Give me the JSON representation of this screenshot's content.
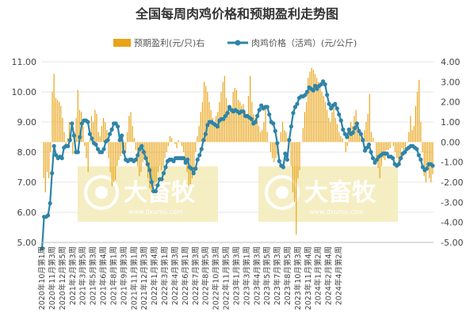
{
  "chart_data": {
    "type": "bar+line",
    "title": "全国每周肉鸡价格和预期盈利走势图",
    "legend": {
      "placement": "top-center"
    },
    "colors": {
      "bar": "#E8A317",
      "line": "#2E84A8",
      "line_marker_fill": "#2E84A8",
      "grid": "#e6e6e6"
    },
    "left_axis": {
      "ylim": [
        5.0,
        11.0
      ],
      "ticks": [
        "5.00",
        "6.00",
        "7.00",
        "8.00",
        "9.00",
        "10.00",
        "11.00"
      ]
    },
    "right_axis": {
      "ylim": [
        -5.0,
        4.0
      ],
      "ticks": [
        "-5.00",
        "-4.00",
        "-3.00",
        "-2.00",
        "-1.00",
        "0.00",
        "1.00",
        "2.00",
        "3.00",
        "4.00"
      ]
    },
    "x_tick_labels": [
      "2020年10月第1周",
      "2020年11月第3周",
      "2020年12月第5周",
      "2021年2月第3周",
      "2021年3月第5周",
      "2021年5月第3周",
      "2021年6月第4周",
      "2021年8月第1周",
      "2021年9月第3周",
      "2021年11月第1周",
      "2021年12月第3周",
      "2022年1月第4周",
      "2022年3月第1周",
      "2022年4月第3周",
      "2022年6月第1周",
      "2022年7月第3周",
      "2022年8月第5周",
      "2022年10月第3周",
      "2022年11月第5周",
      "2023年1月第3周",
      "2023年3月第1周",
      "2023年4月第3周",
      "2023年5月第5周",
      "2023年7月第3周",
      "2023年8月第5周",
      "2023年10月第3周",
      "2023年11月第4周",
      "2024年1月第2周",
      "2024年2月第4周",
      "2024年4月第2周"
    ],
    "x_ticks_every_n_weeks": 6,
    "series": [
      {
        "name": "预期盈利(元/只)右",
        "type": "bar",
        "axis": "right",
        "values": [
          0.0,
          -1.8,
          -2.5,
          -1.5,
          -1.8,
          -0.5,
          2.5,
          3.4,
          2.2,
          2.1,
          2.0,
          1.8,
          1.2,
          0.5,
          -0.3,
          0.2,
          1.0,
          0.3,
          -0.6,
          0.5,
          1.2,
          2.6,
          1.6,
          1.5,
          0.8,
          -0.2,
          -0.8,
          -1.5,
          0.1,
          1.3,
          1.0,
          1.6,
          1.4,
          0.5,
          0.3,
          0.8,
          1.2,
          1.0,
          0.6,
          -0.8,
          -1.5,
          -2.2,
          -2.0,
          -1.9,
          -1.2,
          -0.9,
          -0.7,
          -0.5,
          -0.3,
          -0.5,
          0.5,
          1.3,
          1.5,
          0.8,
          0.2,
          -0.4,
          -1.2,
          -1.7,
          -1.5,
          -1.0,
          -0.8,
          -1.2,
          -1.8,
          -2.3,
          -2.5,
          -2.5,
          -2.2,
          -2.0,
          -1.5,
          -1.2,
          -1.4,
          -1.2,
          -0.8,
          -0.5,
          -0.2,
          0.3,
          0.2,
          0.0,
          -0.1,
          -0.3,
          0.1,
          0.0,
          -0.2,
          -0.5,
          -1.0,
          -1.5,
          -2.2,
          -2.1,
          -1.8,
          -1.5,
          -0.5,
          0.3,
          0.8,
          1.5,
          2.0,
          3.0,
          2.8,
          2.5,
          2.0,
          1.6,
          1.2,
          1.0,
          1.3,
          1.5,
          2.0,
          2.5,
          3.0,
          3.3,
          2.2,
          1.8,
          1.5,
          1.6,
          2.5,
          2.7,
          2.6,
          2.1,
          2.0,
          1.8,
          1.9,
          1.5,
          1.4,
          2.3,
          3.3,
          2.0,
          1.4,
          1.2,
          1.3,
          0.8,
          0.5,
          0.6,
          1.0,
          1.7,
          0.5,
          0.0,
          -0.5,
          -0.8,
          -1.0,
          -0.8,
          -0.6,
          0.0,
          0.5,
          1.0,
          0.6,
          0.5,
          0.2,
          0.0,
          -1.2,
          -2.5,
          -3.0,
          -4.6,
          -1.8,
          -1.4,
          0.0,
          0.7,
          1.5,
          2.0,
          3.2,
          3.5,
          3.7,
          3.6,
          3.4,
          3.2,
          3.0,
          2.9,
          2.5,
          2.3,
          2.0,
          1.6,
          1.2,
          1.0,
          1.5,
          1.8,
          1.2,
          0.9,
          0.5,
          0.3,
          0.2,
          0.0,
          -0.5,
          -0.2,
          0.5,
          1.0,
          0.8,
          1.3,
          1.6,
          0.8,
          0.5,
          0.3,
          0.2,
          0.6,
          1.0,
          1.4,
          2.4,
          0.5,
          0.2,
          0.0,
          -1.0,
          -1.3,
          -1.8,
          -1.2,
          -0.8,
          -0.9,
          -0.4,
          -0.4,
          -0.3,
          0.0,
          -0.2,
          -0.5,
          -0.8,
          -1.0,
          -0.9,
          -0.3,
          -0.5,
          -0.3,
          0.0,
          0.5,
          1.3,
          0.6,
          0.8,
          1.8,
          2.5,
          3.1,
          1.0,
          -0.5,
          -1.7,
          -2.0,
          -1.3,
          -1.8,
          -2.0,
          -1.6
        ]
      },
      {
        "name": "肉鸡价格（活鸡）(元/公斤)",
        "type": "line",
        "axis": "left",
        "values": [
          4.8,
          5.85,
          5.85,
          5.9,
          6.3,
          7.3,
          8.2,
          7.9,
          7.8,
          7.85,
          7.8,
          8.15,
          8.2,
          8.2,
          8.4,
          8.95,
          8.55,
          8.0,
          8.0,
          8.5,
          8.95,
          9.05,
          9.05,
          9.0,
          8.6,
          8.45,
          8.3,
          8.25,
          8.1,
          8.0,
          8.0,
          8.1,
          8.35,
          8.4,
          8.6,
          8.75,
          8.95,
          8.95,
          8.85,
          8.4,
          8.55,
          8.0,
          7.75,
          7.7,
          7.75,
          7.75,
          7.7,
          7.75,
          7.9,
          8.1,
          8.2,
          8.0,
          7.8,
          7.6,
          7.4,
          7.0,
          6.7,
          6.7,
          6.9,
          7.1,
          7.1,
          7.3,
          7.5,
          7.7,
          7.75,
          7.75,
          7.7,
          7.8,
          7.8,
          7.8,
          7.8,
          7.8,
          7.65,
          7.75,
          7.5,
          7.45,
          7.3,
          7.45,
          7.75,
          7.9,
          8.1,
          8.4,
          8.6,
          8.9,
          9.0,
          9.0,
          8.95,
          8.9,
          8.85,
          9.05,
          9.1,
          9.1,
          9.2,
          9.3,
          9.5,
          9.4,
          9.35,
          9.4,
          9.35,
          9.3,
          9.35,
          9.35,
          9.2,
          9.2,
          9.15,
          9.1,
          8.95,
          9.0,
          9.2,
          9.4,
          9.55,
          9.45,
          9.5,
          9.5,
          9.25,
          9.0,
          8.95,
          8.7,
          8.3,
          7.7,
          7.55,
          7.5,
          7.95,
          7.75,
          8.4,
          8.85,
          9.3,
          9.5,
          9.6,
          9.8,
          9.85,
          9.85,
          9.9,
          10.0,
          10.15,
          10.1,
          10.05,
          10.2,
          10.1,
          10.2,
          10.25,
          10.35,
          10.25,
          9.9,
          9.6,
          9.45,
          9.55,
          9.6,
          9.45,
          9.25,
          9.05,
          8.75,
          8.6,
          8.5,
          8.75,
          8.6,
          8.65,
          8.8,
          8.95,
          8.7,
          8.6,
          8.4,
          8.05,
          8.15,
          8.25,
          8.0,
          7.8,
          7.65,
          7.75,
          7.85,
          7.9,
          7.95,
          7.95,
          7.95,
          7.85,
          7.85,
          7.8,
          7.6,
          7.55,
          7.6,
          7.8,
          7.95,
          8.0,
          8.1,
          8.15,
          8.2,
          8.2,
          8.15,
          8.1,
          7.9,
          7.75,
          7.5,
          7.4,
          7.45,
          7.6,
          7.6,
          7.55
        ]
      }
    ],
    "notes": {
      "bar_weeks": 233,
      "line_weeks": 189
    }
  },
  "watermark": {
    "brand": "大畜牧",
    "site": "www.dxumu.com"
  }
}
